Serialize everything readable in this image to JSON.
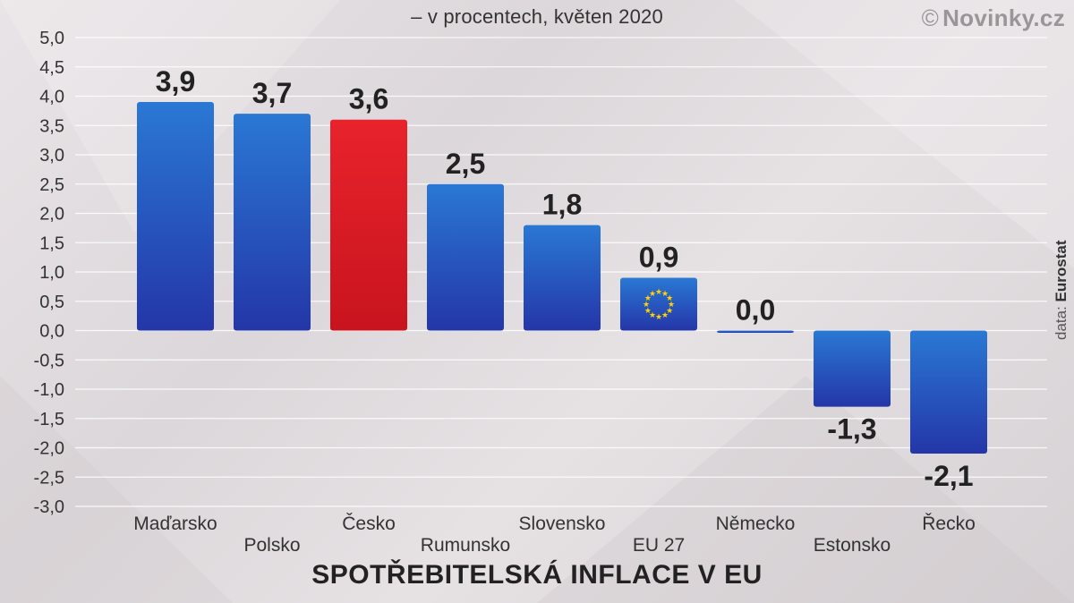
{
  "subtitle": "– v procentech, květen 2020",
  "brand": {
    "symbol": "©",
    "name": "Novinky.cz"
  },
  "source": {
    "prefix": "data:",
    "name": "Eurostat"
  },
  "colors": {
    "bar": "#1f5fbf",
    "highlight": "#e0202a",
    "grid": "#ffffff",
    "text": "#222222"
  },
  "chart_data": {
    "type": "bar",
    "title": "SPOTŘEBITELSKÁ INFLACE V EU",
    "subtitle": "– v procentech, květen 2020",
    "categories": [
      "Maďarsko",
      "Polsko",
      "Česko",
      "Rumunsko",
      "Slovensko",
      "EU 27",
      "Německo",
      "Estonsko",
      "Řecko"
    ],
    "values": [
      3.9,
      3.7,
      3.6,
      2.5,
      1.8,
      0.9,
      0.0,
      -1.3,
      -2.1
    ],
    "value_labels": [
      "3,9",
      "3,7",
      "3,6",
      "2,5",
      "1,8",
      "0,9",
      "0,0",
      "-1,3",
      "-2,1"
    ],
    "highlight": "Česko",
    "ylim": [
      -3.0,
      5.0
    ],
    "ytick_labels": [
      "5,0",
      "4,5",
      "4,0",
      "3,5",
      "3,0",
      "2,5",
      "2,0",
      "1,5",
      "1,0",
      "0,5",
      "0,0",
      "-0,5",
      "-1,0",
      "-1,5",
      "-2,0",
      "-2,5",
      "-3,0"
    ],
    "grid": true
  }
}
